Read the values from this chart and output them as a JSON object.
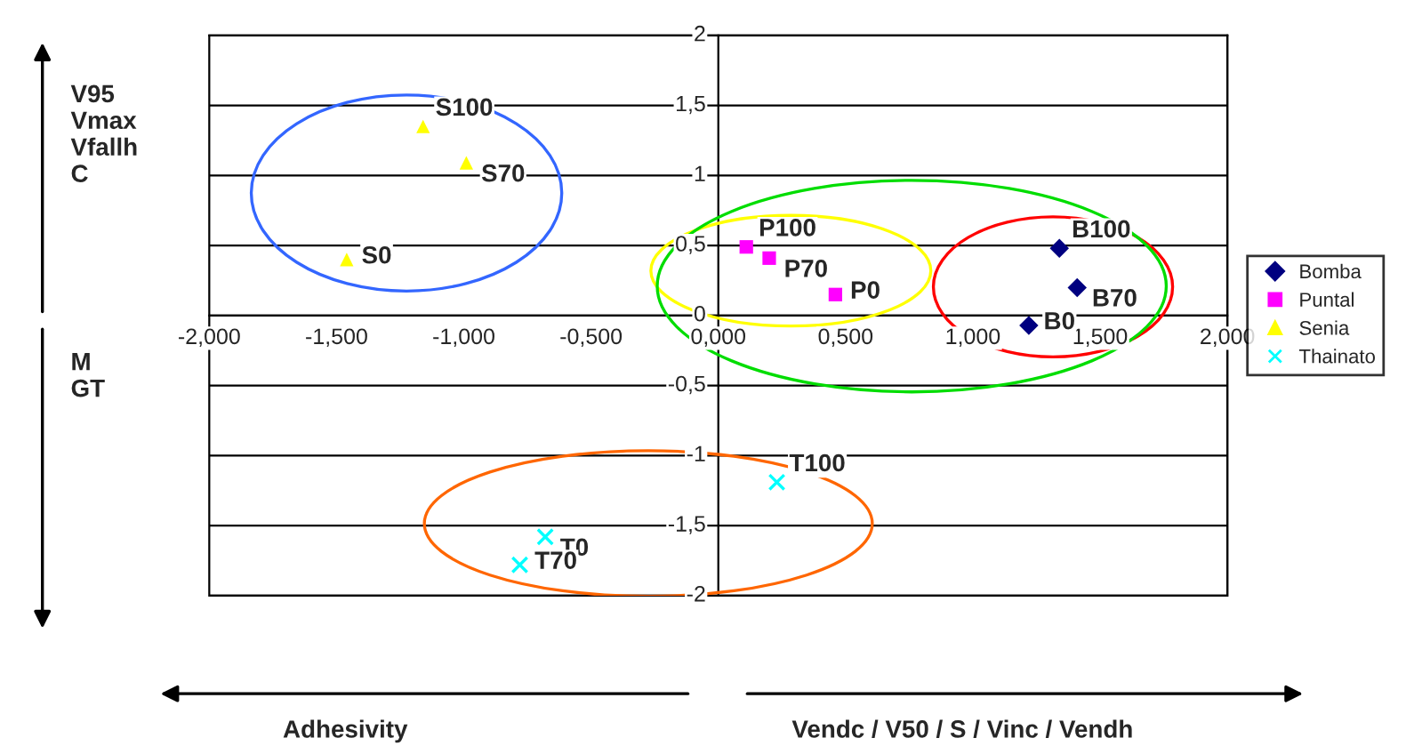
{
  "chart_data": {
    "type": "scatter",
    "series": [
      {
        "name": "Bomba",
        "color": "#000080",
        "marker": "diamond",
        "x": [
          1.34,
          1.41,
          1.22
        ],
        "values": [
          0.48,
          0.2,
          -0.07
        ]
      },
      {
        "name": "Puntal",
        "color": "#ff00ff",
        "marker": "square",
        "x": [
          0.11,
          0.2,
          0.46
        ],
        "values": [
          0.49,
          0.41,
          0.15
        ]
      },
      {
        "name": "Senia",
        "color": "#ffff00",
        "marker": "triangle",
        "x": [
          -1.16,
          -0.99,
          -1.46
        ],
        "values": [
          1.35,
          1.09,
          0.4
        ]
      },
      {
        "name": "Thainato",
        "color": "#00ffff",
        "marker": "cross",
        "x": [
          0.23,
          -0.68,
          -0.78
        ],
        "values": [
          -1.19,
          -1.58,
          -1.78
        ]
      }
    ],
    "xlim": [
      -2,
      2
    ],
    "ylim": [
      -2,
      2
    ],
    "xticks": [
      {
        "value": -2,
        "label": "-2,000"
      },
      {
        "value": -1.5,
        "label": "-1,500"
      },
      {
        "value": -1,
        "label": "-1,000"
      },
      {
        "value": -0.5,
        "label": "-0,500"
      },
      {
        "value": 0,
        "label": "0,000"
      },
      {
        "value": 0.5,
        "label": "0,500"
      },
      {
        "value": 1,
        "label": "1,000"
      },
      {
        "value": 1.5,
        "label": "1,500"
      },
      {
        "value": 2,
        "label": "2,000"
      }
    ],
    "yticks": [
      -2,
      {
        "value": -1.5,
        "label": "-1,5"
      },
      -1,
      {
        "value": -0.5,
        "label": "-0,5"
      },
      0,
      {
        "value": 0.5,
        "label": "0,5"
      },
      1,
      {
        "value": 1.5,
        "label": "1,5"
      },
      2
    ],
    "grid": "y",
    "legend": "right",
    "annotations": [
      {
        "text": "B100",
        "x": 1.34,
        "y": 0.48
      },
      {
        "text": "B70",
        "x": 1.41,
        "y": 0.2
      },
      {
        "text": "B0",
        "x": 1.22,
        "y": -0.07
      },
      {
        "text": "P100",
        "x": 0.11,
        "y": 0.49
      },
      {
        "text": "P70",
        "x": 0.2,
        "y": 0.41
      },
      {
        "text": "P0",
        "x": 0.46,
        "y": 0.15
      },
      {
        "text": "S100",
        "x": -1.16,
        "y": 1.35
      },
      {
        "text": "S70",
        "x": -0.99,
        "y": 1.09
      },
      {
        "text": "S0",
        "x": -1.46,
        "y": 0.4
      },
      {
        "text": "T100",
        "x": 0.23,
        "y": -1.19
      },
      {
        "text": "T0",
        "x": -0.68,
        "y": -1.58
      },
      {
        "text": "T70",
        "x": -0.78,
        "y": -1.78
      },
      "V95\nVmax\nVfallh\nC",
      "M\nGT",
      "Adhesivity",
      "Vendc / V50 / S / Vinc / Vendh"
    ]
  }
}
